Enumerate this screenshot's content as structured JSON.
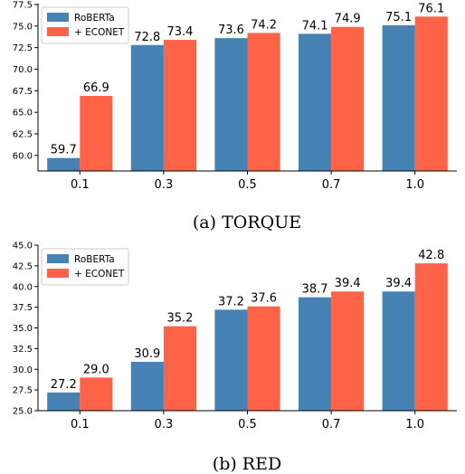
{
  "chart_data": [
    {
      "type": "bar",
      "caption": "(a) TORQUE",
      "categories": [
        "0.1",
        "0.3",
        "0.5",
        "0.7",
        "1.0"
      ],
      "series": [
        {
          "name": "RoBERTa",
          "color": "#4682b4",
          "values": [
            59.7,
            72.8,
            73.6,
            74.1,
            75.1
          ],
          "labels": [
            "59.7",
            "72.8",
            "73.6",
            "74.1",
            "75.1"
          ]
        },
        {
          "name": "+ ECONET",
          "color": "#ff6347",
          "values": [
            66.9,
            73.4,
            74.2,
            74.9,
            76.1
          ],
          "labels": [
            "66.9",
            "73.4",
            "74.2",
            "74.9",
            "76.1"
          ]
        }
      ],
      "ylim": [
        58.2,
        77.6
      ],
      "yticks": [
        "60.0",
        "62.5",
        "65.0",
        "67.5",
        "70.0",
        "72.5",
        "75.0",
        "77.5"
      ],
      "legend": "top-left"
    },
    {
      "type": "bar",
      "caption": "(b) RED",
      "categories": [
        "0.1",
        "0.3",
        "0.5",
        "0.7",
        "1.0"
      ],
      "series": [
        {
          "name": "RoBERTa",
          "color": "#4682b4",
          "values": [
            27.2,
            30.9,
            37.2,
            38.7,
            39.4
          ],
          "labels": [
            "27.2",
            "30.9",
            "37.2",
            "38.7",
            "39.4"
          ]
        },
        {
          "name": "+ ECONET",
          "color": "#ff6347",
          "values": [
            29.0,
            35.2,
            37.6,
            39.4,
            42.8
          ],
          "labels": [
            "29.0",
            "35.2",
            "37.6",
            "39.4",
            "42.8"
          ]
        }
      ],
      "ylim": [
        25.0,
        45.0
      ],
      "yticks": [
        "25.0",
        "27.5",
        "30.0",
        "32.5",
        "35.0",
        "37.5",
        "40.0",
        "42.5",
        "45.0"
      ],
      "legend": "top-left"
    }
  ]
}
